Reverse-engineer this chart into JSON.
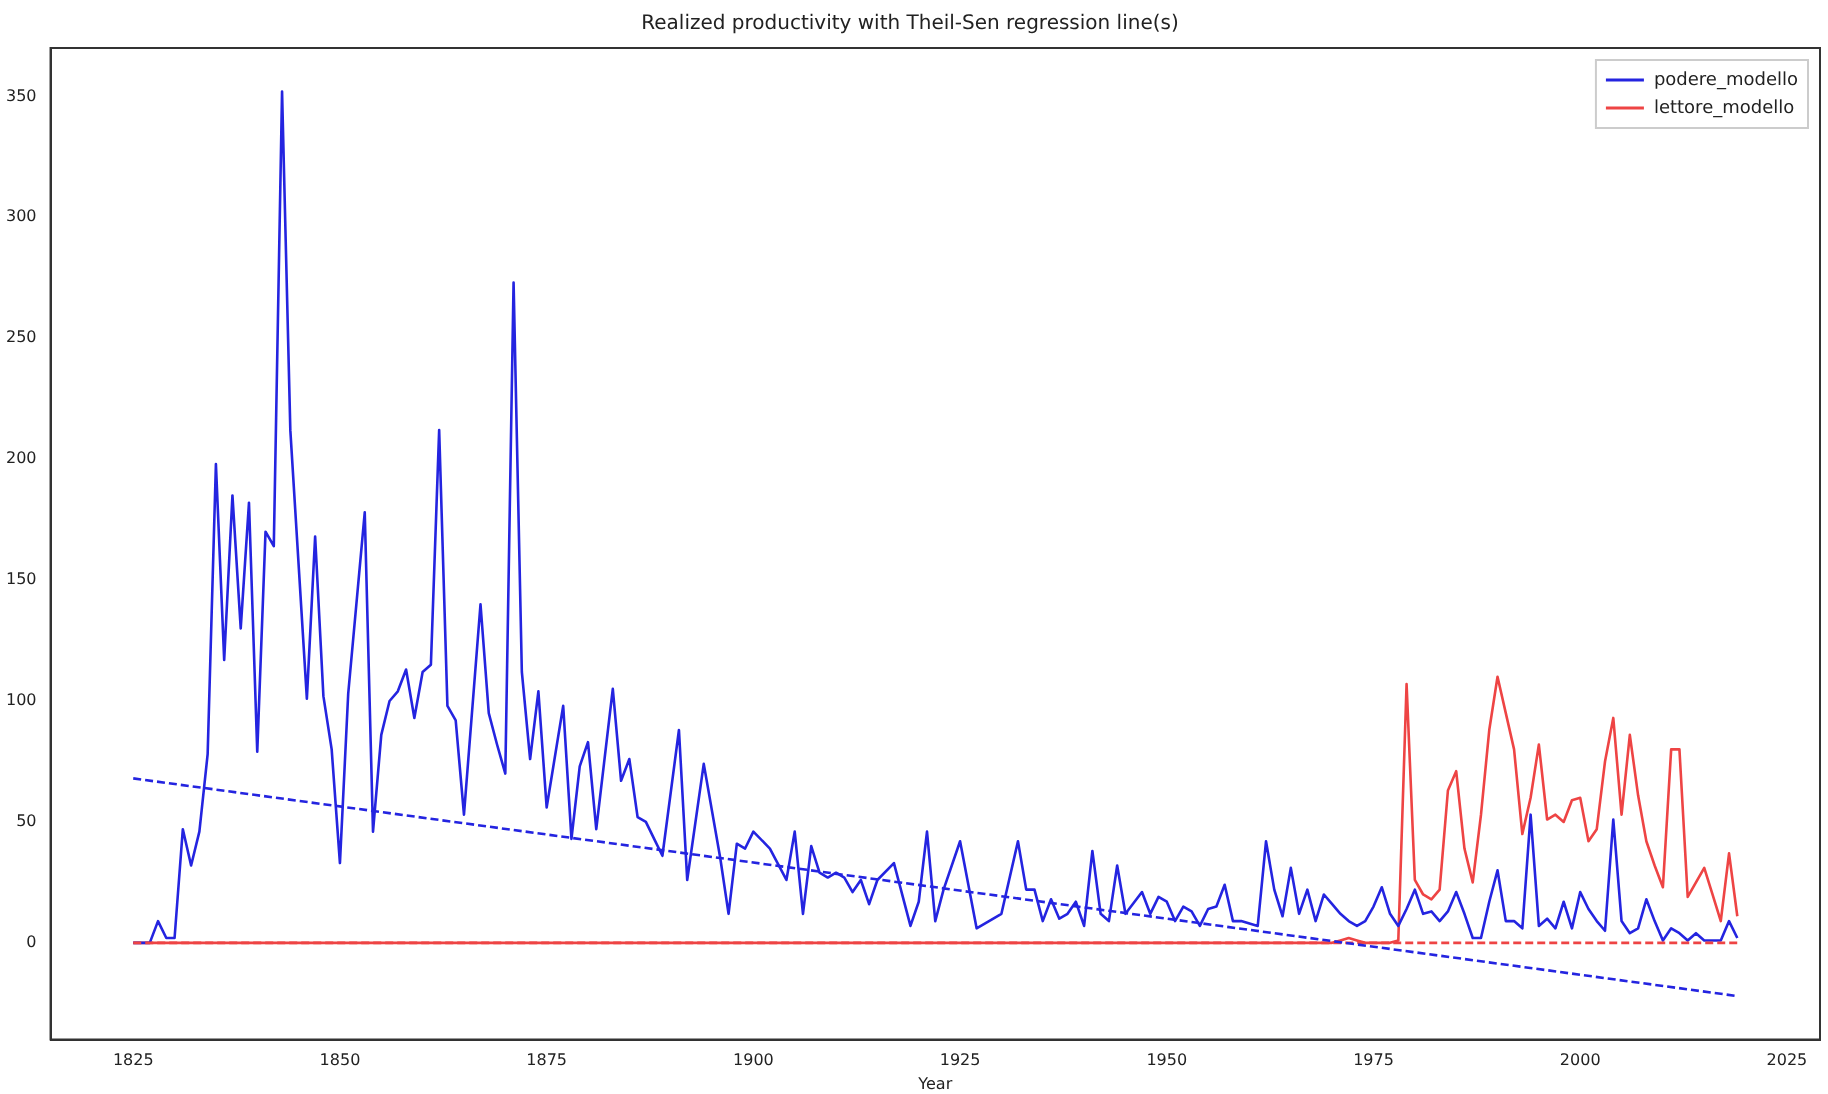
{
  "chart_data": {
    "type": "line",
    "title": "Realized productivity with Theil-Sen regression line(s)",
    "xlabel": "Year",
    "xlim": [
      1815,
      2029
    ],
    "xticks": [
      1825,
      1850,
      1875,
      1900,
      1925,
      1950,
      1975,
      2000,
      2025
    ],
    "ylim": [
      -40,
      370
    ],
    "yticks": [
      0,
      50,
      100,
      150,
      200,
      250,
      300,
      350
    ],
    "grid": false,
    "legend": "top right",
    "series": [
      {
        "name": "podere_modello",
        "color": "#2424e0",
        "line_style": "solid",
        "x": [
          1825,
          1826,
          1827,
          1828,
          1829,
          1830,
          1831,
          1832,
          1833,
          1834,
          1835,
          1836,
          1837,
          1838,
          1839,
          1840,
          1841,
          1842,
          1843,
          1844,
          1846,
          1847,
          1848,
          1849,
          1850,
          1851,
          1853,
          1854,
          1855,
          1856,
          1857,
          1858,
          1859,
          1860,
          1861,
          1862,
          1863,
          1864,
          1865,
          1867,
          1868,
          1869,
          1870,
          1871,
          1872,
          1873,
          1874,
          1875,
          1877,
          1878,
          1879,
          1880,
          1881,
          1883,
          1884,
          1885,
          1886,
          1887,
          1888,
          1889,
          1891,
          1892,
          1894,
          1896,
          1897,
          1898,
          1899,
          1900,
          1902,
          1904,
          1905,
          1906,
          1907,
          1908,
          1909,
          1910,
          1911,
          1912,
          1913,
          1914,
          1915,
          1917,
          1919,
          1920,
          1921,
          1922,
          1923,
          1925,
          1927,
          1930,
          1932,
          1933,
          1934,
          1935,
          1936,
          1937,
          1938,
          1939,
          1940,
          1941,
          1942,
          1943,
          1944,
          1945,
          1947,
          1948,
          1949,
          1950,
          1951,
          1952,
          1953,
          1954,
          1955,
          1956,
          1957,
          1958,
          1959,
          1961,
          1962,
          1963,
          1964,
          1965,
          1966,
          1967,
          1968,
          1969,
          1970,
          1971,
          1972,
          1973,
          1974,
          1975,
          1976,
          1977,
          1978,
          1979,
          1980,
          1981,
          1982,
          1983,
          1984,
          1985,
          1986,
          1987,
          1988,
          1989,
          1990,
          1991,
          1992,
          1993,
          1994,
          1995,
          1996,
          1997,
          1998,
          1999,
          2000,
          2001,
          2002,
          2003,
          2004,
          2005,
          2006,
          2007,
          2008,
          2009,
          2010,
          2011,
          2012,
          2013,
          2014,
          2015,
          2016,
          2017,
          2018,
          2019
        ],
        "values": [
          0,
          0,
          0,
          9,
          2,
          2,
          47,
          32,
          46,
          78,
          198,
          117,
          185,
          130,
          182,
          79,
          170,
          164,
          352,
          212,
          101,
          168,
          102,
          80,
          33,
          103,
          178,
          46,
          86,
          100,
          104,
          113,
          93,
          112,
          115,
          212,
          98,
          92,
          53,
          140,
          95,
          82,
          70,
          273,
          112,
          76,
          104,
          56,
          98,
          43,
          73,
          83,
          47,
          105,
          67,
          76,
          52,
          50,
          43,
          36,
          88,
          26,
          74,
          35,
          12,
          41,
          39,
          46,
          39,
          26,
          46,
          12,
          40,
          29,
          27,
          29,
          27,
          21,
          26,
          16,
          26,
          33,
          7,
          17,
          46,
          9,
          22,
          42,
          6,
          12,
          42,
          22,
          22,
          9,
          18,
          10,
          12,
          17,
          7,
          38,
          12,
          9,
          32,
          12,
          21,
          12,
          19,
          17,
          9,
          15,
          13,
          7,
          14,
          15,
          24,
          9,
          9,
          7,
          42,
          22,
          11,
          31,
          12,
          22,
          9,
          20,
          16,
          12,
          9,
          7,
          9,
          15,
          23,
          12,
          7,
          14,
          22,
          12,
          13,
          9,
          13,
          21,
          12,
          2,
          2,
          17,
          30,
          9,
          9,
          6,
          53,
          7,
          10,
          6,
          17,
          6,
          21,
          14,
          9,
          5,
          51,
          9,
          4,
          6,
          18,
          9,
          1,
          6,
          4,
          1,
          4,
          1,
          1,
          1,
          9,
          2
        ]
      },
      {
        "name": "lettore_modello",
        "color": "#ee4444",
        "line_style": "solid",
        "x": [
          1825,
          1970,
          1971,
          1972,
          1973,
          1974,
          1977,
          1978,
          1979,
          1980,
          1981,
          1982,
          1983,
          1984,
          1985,
          1986,
          1987,
          1988,
          1989,
          1990,
          1991,
          1992,
          1993,
          1994,
          1995,
          1996,
          1997,
          1998,
          1999,
          2000,
          2001,
          2002,
          2003,
          2004,
          2005,
          2006,
          2007,
          2008,
          2009,
          2010,
          2011,
          2012,
          2013,
          2014,
          2015,
          2016,
          2017,
          2018,
          2019
        ],
        "values": [
          0,
          0,
          1,
          2,
          1,
          0,
          0,
          1,
          107,
          26,
          20,
          18,
          22,
          63,
          71,
          39,
          25,
          53,
          88,
          110,
          95,
          80,
          45,
          60,
          82,
          51,
          53,
          50,
          59,
          60,
          42,
          47,
          75,
          93,
          53,
          86,
          61,
          42,
          32,
          23,
          80,
          80,
          19,
          25,
          31,
          20,
          9,
          37,
          11
        ]
      },
      {
        "color": "#2424e0",
        "line_style": "dashed",
        "x": [
          1825,
          2019
        ],
        "values": [
          68,
          -22
        ]
      },
      {
        "color": "#ee4444",
        "line_style": "dashed",
        "x": [
          1825,
          2019
        ],
        "values": [
          0,
          0
        ]
      }
    ]
  }
}
